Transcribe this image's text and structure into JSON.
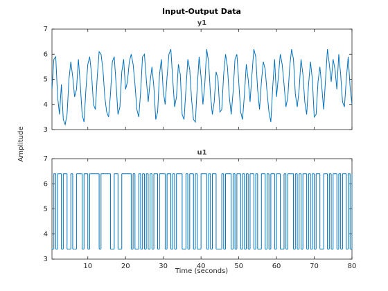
{
  "chart_data": {
    "type": "line",
    "title": "Input-Output Data",
    "xlabel": "Time (seconds)",
    "ylabel": "Amplitude",
    "xlim": [
      0.5,
      80
    ],
    "xticks": [
      10,
      20,
      30,
      40,
      50,
      60,
      70,
      80
    ],
    "ylim": [
      3,
      7
    ],
    "yticks": [
      3,
      4,
      5,
      6,
      7
    ],
    "x": [
      0.5,
      1,
      1.5,
      2,
      2.5,
      3,
      3.5,
      4,
      4.5,
      5,
      5.5,
      6,
      6.5,
      7,
      7.5,
      8,
      8.5,
      9,
      9.5,
      10,
      10.5,
      11,
      11.5,
      12,
      12.5,
      13,
      13.5,
      14,
      14.5,
      15,
      15.5,
      16,
      16.5,
      17,
      17.5,
      18,
      18.5,
      19,
      19.5,
      20,
      20.5,
      21,
      21.5,
      22,
      22.5,
      23,
      23.5,
      24,
      24.5,
      25,
      25.5,
      26,
      26.5,
      27,
      27.5,
      28,
      28.5,
      29,
      29.5,
      30,
      30.5,
      31,
      31.5,
      32,
      32.5,
      33,
      33.5,
      34,
      34.5,
      35,
      35.5,
      36,
      36.5,
      37,
      37.5,
      38,
      38.5,
      39,
      39.5,
      40,
      40.5,
      41,
      41.5,
      42,
      42.5,
      43,
      43.5,
      44,
      44.5,
      45,
      45.5,
      46,
      46.5,
      47,
      47.5,
      48,
      48.5,
      49,
      49.5,
      50,
      50.5,
      51,
      51.5,
      52,
      52.5,
      53,
      53.5,
      54,
      54.5,
      55,
      55.5,
      56,
      56.5,
      57,
      57.5,
      58,
      58.5,
      59,
      59.5,
      60,
      60.5,
      61,
      61.5,
      62,
      62.5,
      63,
      63.5,
      64,
      64.5,
      65,
      65.5,
      66,
      66.5,
      67,
      67.5,
      68,
      68.5,
      69,
      69.5,
      70,
      70.5,
      71,
      71.5,
      72,
      72.5,
      73,
      73.5,
      74,
      74.5,
      75,
      75.5,
      76,
      76.5,
      77,
      77.5,
      78,
      78.5,
      79,
      79.5,
      80
    ],
    "series": [
      {
        "name": "y1",
        "color": "#0072bd",
        "drawstyle": "line",
        "values": [
          4.6,
          5.8,
          5.9,
          4.3,
          3.6,
          4.8,
          3.4,
          3.2,
          3.6,
          5.0,
          5.7,
          5.1,
          4.3,
          4.6,
          5.8,
          4.8,
          3.6,
          3.3,
          4.6,
          5.6,
          5.9,
          5.2,
          4.0,
          3.8,
          5.1,
          6.1,
          6.0,
          5.4,
          4.3,
          3.7,
          3.5,
          4.4,
          5.7,
          5.9,
          4.8,
          3.6,
          3.9,
          5.3,
          5.8,
          4.6,
          4.9,
          5.7,
          6.0,
          5.6,
          4.8,
          3.8,
          3.5,
          4.5,
          5.9,
          6.0,
          5.0,
          4.1,
          4.9,
          5.5,
          4.7,
          3.4,
          3.7,
          5.2,
          5.8,
          4.5,
          4.0,
          5.1,
          6.0,
          6.2,
          5.0,
          3.9,
          4.3,
          5.6,
          5.2,
          3.6,
          3.4,
          4.6,
          5.8,
          5.4,
          4.2,
          3.4,
          3.3,
          4.7,
          5.9,
          5.1,
          4.0,
          4.8,
          6.2,
          5.7,
          4.4,
          3.6,
          4.1,
          5.3,
          5.0,
          3.7,
          3.8,
          5.2,
          6.0,
          5.5,
          4.3,
          3.6,
          4.5,
          5.8,
          6.0,
          4.9,
          3.7,
          3.4,
          4.4,
          5.6,
          5.0,
          4.1,
          5.2,
          6.2,
          5.9,
          4.6,
          3.8,
          4.9,
          5.7,
          5.4,
          4.5,
          3.7,
          3.3,
          4.7,
          5.8,
          4.3,
          5.1,
          6.0,
          5.6,
          4.8,
          3.9,
          4.3,
          5.5,
          6.2,
          5.8,
          4.4,
          3.9,
          4.6,
          5.8,
          5.2,
          4.1,
          3.6,
          4.8,
          5.7,
          5.0,
          3.5,
          3.6,
          4.9,
          5.5,
          4.7,
          3.8,
          5.0,
          6.2,
          5.6,
          4.9,
          5.8,
          5.4,
          4.6,
          6.0,
          5.2,
          4.1,
          3.9,
          5.0,
          5.9,
          4.7,
          4.0
        ]
      },
      {
        "name": "u1",
        "color": "#0072bd",
        "drawstyle": "steps",
        "values": [
          3.4,
          6.4,
          3.4,
          6.4,
          6.4,
          3.4,
          6.4,
          6.4,
          3.4,
          3.4,
          6.4,
          3.4,
          3.4,
          6.4,
          6.4,
          6.4,
          3.4,
          6.4,
          6.4,
          3.4,
          6.4,
          6.4,
          6.4,
          6.4,
          6.4,
          3.4,
          6.4,
          6.4,
          6.4,
          6.4,
          6.4,
          3.4,
          3.4,
          6.4,
          6.4,
          3.4,
          3.4,
          6.4,
          6.4,
          6.4,
          6.4,
          6.4,
          3.4,
          6.4,
          3.4,
          3.4,
          6.4,
          3.4,
          6.4,
          3.4,
          6.4,
          3.4,
          6.4,
          3.4,
          6.4,
          6.4,
          3.4,
          6.4,
          6.4,
          6.4,
          3.4,
          6.4,
          6.4,
          3.4,
          6.4,
          3.4,
          6.4,
          6.4,
          6.4,
          3.4,
          3.4,
          6.4,
          3.4,
          6.4,
          6.4,
          3.4,
          6.4,
          3.4,
          3.4,
          6.4,
          6.4,
          6.4,
          3.4,
          6.4,
          3.4,
          6.4,
          6.4,
          3.4,
          3.4,
          3.4,
          6.4,
          3.4,
          6.4,
          6.4,
          6.4,
          3.4,
          6.4,
          3.4,
          6.4,
          6.4,
          3.4,
          6.4,
          3.4,
          6.4,
          3.4,
          6.4,
          6.4,
          3.4,
          6.4,
          3.4,
          3.4,
          6.4,
          6.4,
          3.4,
          6.4,
          3.4,
          6.4,
          6.4,
          3.4,
          6.4,
          6.4,
          3.4,
          3.4,
          6.4,
          3.4,
          6.4,
          6.4,
          6.4,
          3.4,
          6.4,
          3.4,
          6.4,
          3.4,
          6.4,
          6.4,
          3.4,
          6.4,
          3.4,
          6.4,
          3.4,
          6.4,
          6.4,
          3.4,
          3.4,
          6.4,
          6.4,
          3.4,
          6.4,
          3.4,
          6.4,
          6.4,
          3.4,
          6.4,
          3.4,
          6.4,
          6.4,
          3.4,
          6.4,
          3.4,
          6.4
        ]
      }
    ]
  }
}
